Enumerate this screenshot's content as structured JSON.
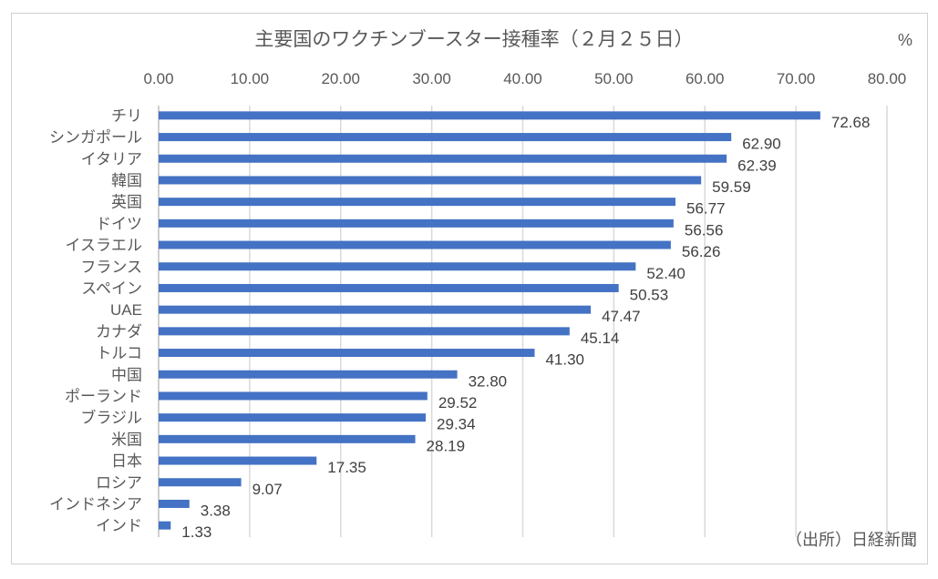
{
  "chart_data": {
    "type": "bar",
    "orientation": "horizontal",
    "title": "主要国のワクチンブースター接種率（２月２５日）",
    "unit_label": "%",
    "source": "（出所）日経新聞",
    "xlim": [
      0,
      80
    ],
    "ticks": [
      "0.00",
      "10.00",
      "20.00",
      "30.00",
      "40.00",
      "50.00",
      "60.00",
      "70.00",
      "80.00"
    ],
    "grid": true,
    "bar_color": "#4472C4",
    "categories": [
      "チリ",
      "シンガポール",
      "イタリア",
      "韓国",
      "英国",
      "ドイツ",
      "イスラエル",
      "フランス",
      "スペイン",
      "UAE",
      "カナダ",
      "トルコ",
      "中国",
      "ポーランド",
      "ブラジル",
      "米国",
      "日本",
      "ロシア",
      "インドネシア",
      "インド"
    ],
    "values": [
      72.68,
      62.9,
      62.39,
      59.59,
      56.77,
      56.56,
      56.26,
      52.4,
      50.53,
      47.47,
      45.14,
      41.3,
      32.8,
      29.52,
      29.34,
      28.19,
      17.35,
      9.07,
      3.38,
      1.33
    ],
    "value_labels": [
      "72.68",
      "62.90",
      "62.39",
      "59.59",
      "56.77",
      "56.56",
      "56.26",
      "52.40",
      "50.53",
      "47.47",
      "45.14",
      "41.30",
      "32.80",
      "29.52",
      "29.34",
      "28.19",
      "17.35",
      "9.07",
      "3.38",
      "1.33"
    ]
  }
}
